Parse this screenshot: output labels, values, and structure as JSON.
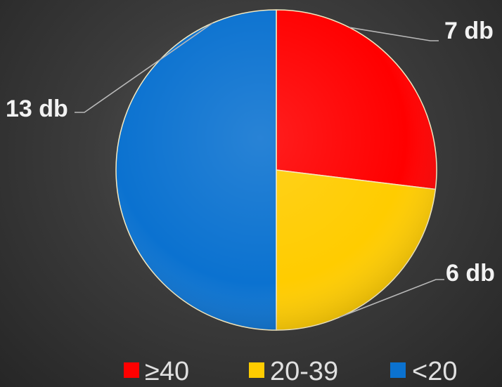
{
  "chart_data": {
    "type": "pie",
    "title": "",
    "categories": [
      "≥40",
      "20-39",
      "<20"
    ],
    "values": [
      7,
      6,
      13
    ],
    "data_labels": [
      "7 db",
      "6 db",
      "13 db"
    ],
    "colors": [
      "#ff0000",
      "#ffcc00",
      "#0b72d0"
    ],
    "start_angle_deg": 0,
    "direction": "clockwise",
    "legend": {
      "position": "bottom",
      "entries": [
        "≥40",
        "20-39",
        "<20"
      ]
    },
    "background": "#3a3a3a"
  }
}
